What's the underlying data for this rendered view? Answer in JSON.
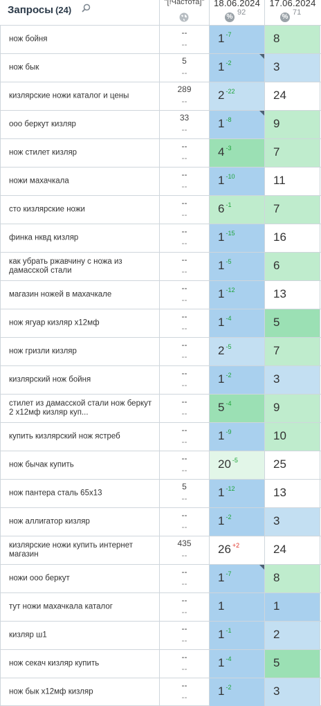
{
  "header": {
    "title": "Запросы",
    "count": "(24)",
    "freq_label": "\"[!Частота]\"",
    "date1": "18.06.2024",
    "avg1": "92",
    "date2": "17.06.2024",
    "avg2": "71",
    "percent_symbol": "%"
  },
  "rows": [
    {
      "query": "нож бойня",
      "f1": "--",
      "f2": "--",
      "p1": "1",
      "d1": "-7",
      "d1dir": "up",
      "c1": "b1",
      "flag": false,
      "p2": "8",
      "c2": "g2"
    },
    {
      "query": "нож бык",
      "f1": "5",
      "f2": "--",
      "p1": "1",
      "d1": "-2",
      "d1dir": "up",
      "c1": "b1",
      "flag": true,
      "p2": "3",
      "c2": "b2"
    },
    {
      "query": "кизлярские ножи каталог и цены",
      "f1": "289",
      "f2": "--",
      "p1": "2",
      "d1": "-22",
      "d1dir": "up",
      "c1": "b2",
      "flag": false,
      "p2": "24",
      "c2": "w"
    },
    {
      "query": "ооо беркут кизляр",
      "f1": "33",
      "f2": "--",
      "p1": "1",
      "d1": "-8",
      "d1dir": "up",
      "c1": "b1",
      "flag": true,
      "p2": "9",
      "c2": "g2"
    },
    {
      "query": "нож стилет кизляр",
      "f1": "--",
      "f2": "--",
      "p1": "4",
      "d1": "-3",
      "d1dir": "up",
      "c1": "g1",
      "flag": false,
      "p2": "7",
      "c2": "g2"
    },
    {
      "query": "ножи махачкала",
      "f1": "--",
      "f2": "--",
      "p1": "1",
      "d1": "-10",
      "d1dir": "up",
      "c1": "b1",
      "flag": false,
      "p2": "11",
      "c2": "w"
    },
    {
      "query": "сто кизлярские ножи",
      "f1": "--",
      "f2": "--",
      "p1": "6",
      "d1": "-1",
      "d1dir": "up",
      "c1": "g2",
      "flag": false,
      "p2": "7",
      "c2": "g2"
    },
    {
      "query": "финка нквд кизляр",
      "f1": "--",
      "f2": "--",
      "p1": "1",
      "d1": "-15",
      "d1dir": "up",
      "c1": "b1",
      "flag": false,
      "p2": "16",
      "c2": "w"
    },
    {
      "query": "как убрать ржавчину с ножа из дамасской стали",
      "f1": "--",
      "f2": "--",
      "p1": "1",
      "d1": "-5",
      "d1dir": "up",
      "c1": "b1",
      "flag": false,
      "p2": "6",
      "c2": "g2"
    },
    {
      "query": "магазин ножей в махачкале",
      "f1": "--",
      "f2": "--",
      "p1": "1",
      "d1": "-12",
      "d1dir": "up",
      "c1": "b1",
      "flag": false,
      "p2": "13",
      "c2": "w"
    },
    {
      "query": "нож ягуар кизляр х12мф",
      "f1": "--",
      "f2": "--",
      "p1": "1",
      "d1": "-4",
      "d1dir": "up",
      "c1": "b1",
      "flag": false,
      "p2": "5",
      "c2": "g1"
    },
    {
      "query": "нож гризли кизляр",
      "f1": "--",
      "f2": "--",
      "p1": "2",
      "d1": "-5",
      "d1dir": "up",
      "c1": "b2",
      "flag": false,
      "p2": "7",
      "c2": "g2"
    },
    {
      "query": "кизлярский нож бойня",
      "f1": "--",
      "f2": "--",
      "p1": "1",
      "d1": "-2",
      "d1dir": "up",
      "c1": "b1",
      "flag": false,
      "p2": "3",
      "c2": "b2"
    },
    {
      "query": "стилет из дамасской стали нож беркут 2 х12мф кизляр куп...",
      "f1": "--",
      "f2": "--",
      "p1": "5",
      "d1": "-4",
      "d1dir": "up",
      "c1": "g1",
      "flag": false,
      "p2": "9",
      "c2": "g2"
    },
    {
      "query": "купить кизлярский нож ястреб",
      "f1": "--",
      "f2": "--",
      "p1": "1",
      "d1": "-9",
      "d1dir": "up",
      "c1": "b1",
      "flag": false,
      "p2": "10",
      "c2": "g2"
    },
    {
      "query": "нож бычак купить",
      "f1": "--",
      "f2": "--",
      "p1": "20",
      "d1": "-5",
      "d1dir": "up",
      "c1": "g3",
      "flag": false,
      "p2": "25",
      "c2": "w"
    },
    {
      "query": "нож пантера сталь 65х13",
      "f1": "5",
      "f2": "--",
      "p1": "1",
      "d1": "-12",
      "d1dir": "up",
      "c1": "b1",
      "flag": false,
      "p2": "13",
      "c2": "w"
    },
    {
      "query": "нож аллигатор кизляр",
      "f1": "--",
      "f2": "--",
      "p1": "1",
      "d1": "-2",
      "d1dir": "up",
      "c1": "b1",
      "flag": false,
      "p2": "3",
      "c2": "b2"
    },
    {
      "query": "кизлярские ножи купить интернет магазин",
      "f1": "435",
      "f2": "--",
      "p1": "26",
      "d1": "+2",
      "d1dir": "down",
      "c1": "w",
      "flag": false,
      "p2": "24",
      "c2": "w"
    },
    {
      "query": "ножи ооо беркут",
      "f1": "--",
      "f2": "--",
      "p1": "1",
      "d1": "-7",
      "d1dir": "up",
      "c1": "b1",
      "flag": true,
      "p2": "8",
      "c2": "g2"
    },
    {
      "query": "тут ножи махачкала каталог",
      "f1": "--",
      "f2": "--",
      "p1": "1",
      "d1": "",
      "d1dir": "up",
      "c1": "b1",
      "flag": false,
      "p2": "1",
      "c2": "b1"
    },
    {
      "query": "кизляр ш1",
      "f1": "--",
      "f2": "--",
      "p1": "1",
      "d1": "-1",
      "d1dir": "up",
      "c1": "b1",
      "flag": false,
      "p2": "2",
      "c2": "b2"
    },
    {
      "query": "нож секач кизляр купить",
      "f1": "--",
      "f2": "--",
      "p1": "1",
      "d1": "-4",
      "d1dir": "up",
      "c1": "b1",
      "flag": false,
      "p2": "5",
      "c2": "g1"
    },
    {
      "query": "нож бык х12мф кизляр",
      "f1": "--",
      "f2": "--",
      "p1": "1",
      "d1": "-2",
      "d1dir": "up",
      "c1": "b1",
      "flag": false,
      "p2": "3",
      "c2": "b2"
    }
  ]
}
